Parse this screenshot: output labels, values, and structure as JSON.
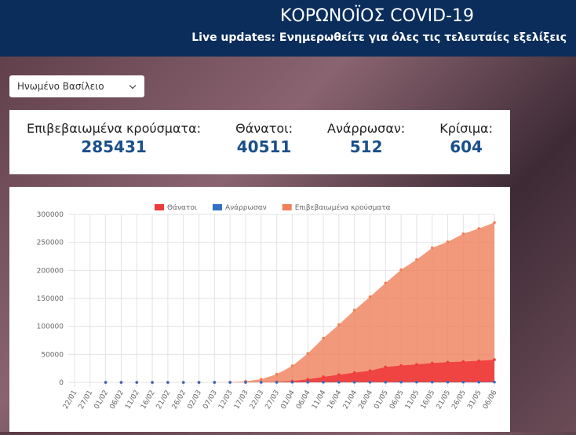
{
  "header": {
    "title": "ΚΟΡΩΝΟΪΟΣ COVID-19",
    "subtitle": "Live updates: Ενημερωθείτε για όλες τις τελευταίες εξελίξεις"
  },
  "dropdown": {
    "selected": "Ηνωμένο Βασίλειο"
  },
  "stats": [
    {
      "label": "Επιβεβαιωμένα κρούσματα:",
      "value": "285431"
    },
    {
      "label": "Θάνατοι:",
      "value": "40511"
    },
    {
      "label": "Ανάρρωσαν:",
      "value": "512"
    },
    {
      "label": "Κρίσιμα:",
      "value": "604"
    }
  ],
  "chart_data": {
    "type": "area",
    "categories": [
      "22/01",
      "27/01",
      "01/02",
      "06/02",
      "11/02",
      "16/02",
      "21/02",
      "26/02",
      "02/03",
      "07/03",
      "12/03",
      "17/03",
      "22/03",
      "27/03",
      "01/04",
      "06/04",
      "11/04",
      "16/04",
      "21/04",
      "26/04",
      "01/05",
      "06/05",
      "11/05",
      "16/05",
      "21/05",
      "26/05",
      "31/05",
      "06/06"
    ],
    "series": [
      {
        "name": "Θάνατοι",
        "color": "#ee3b3b",
        "values": [
          null,
          null,
          0,
          0,
          0,
          0,
          0,
          0,
          0,
          2,
          8,
          71,
          281,
          759,
          2352,
          5373,
          9875,
          13729,
          17337,
          20732,
          27510,
          30076,
          32065,
          34466,
          36042,
          37130,
          38489,
          40511
        ]
      },
      {
        "name": "Ανάρρωσαν",
        "color": "#2f6fc4",
        "values": [
          null,
          null,
          0,
          0,
          0,
          8,
          8,
          8,
          8,
          18,
          18,
          52,
          65,
          135,
          344,
          344,
          344,
          344,
          344,
          344,
          344,
          512,
          512,
          512,
          512,
          512,
          512,
          512
        ]
      },
      {
        "name": "Επιβεβαιωμένα κρούσματα",
        "color": "#f07f5a",
        "values": [
          null,
          null,
          2,
          3,
          8,
          9,
          9,
          13,
          36,
          206,
          459,
          1950,
          5683,
          14579,
          29474,
          51608,
          78991,
          103093,
          129044,
          152840,
          177454,
          201101,
          219183,
          240161,
          250908,
          265227,
          274762,
          285431
        ]
      }
    ],
    "ylim": [
      0,
      300000
    ],
    "yticks": [
      0,
      50000,
      100000,
      150000,
      200000,
      250000,
      300000
    ],
    "grid": true,
    "legend": "top"
  }
}
